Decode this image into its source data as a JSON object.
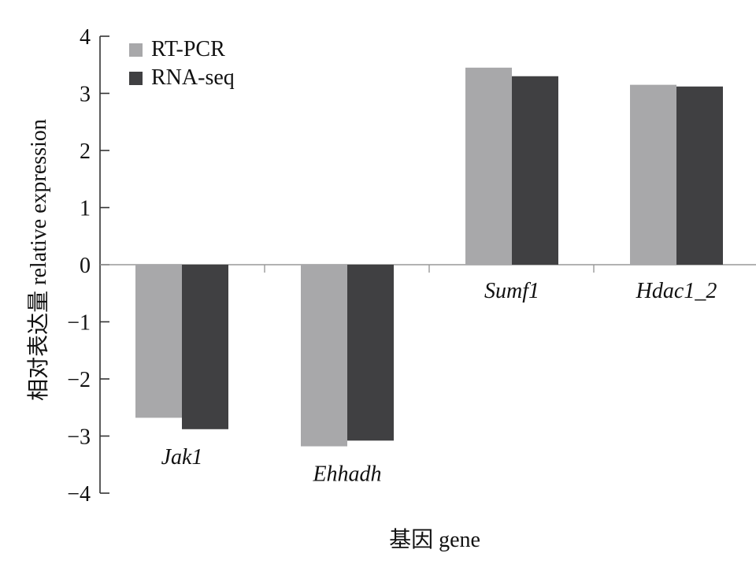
{
  "chart_data": {
    "type": "bar",
    "categories": [
      "Jak1",
      "Ehhadh",
      "Sumf1",
      "Hdac1_2"
    ],
    "series": [
      {
        "name": "RT-PCR",
        "values": [
          -2.68,
          -3.18,
          3.45,
          3.15
        ],
        "color": "#a8a8aa"
      },
      {
        "name": "RNA-seq",
        "values": [
          -2.88,
          -3.08,
          3.3,
          3.12
        ],
        "color": "#404042"
      }
    ],
    "xlabel": "基因 gene",
    "ylabel": "相对表达量 relative expression",
    "ylim": [
      -4,
      4
    ],
    "yticks": [
      "−4",
      "−3",
      "−2",
      "−1",
      "0",
      "1",
      "2",
      "3",
      "4"
    ],
    "grid": false,
    "legend_position": "top-left",
    "category_label_style": "italic"
  }
}
